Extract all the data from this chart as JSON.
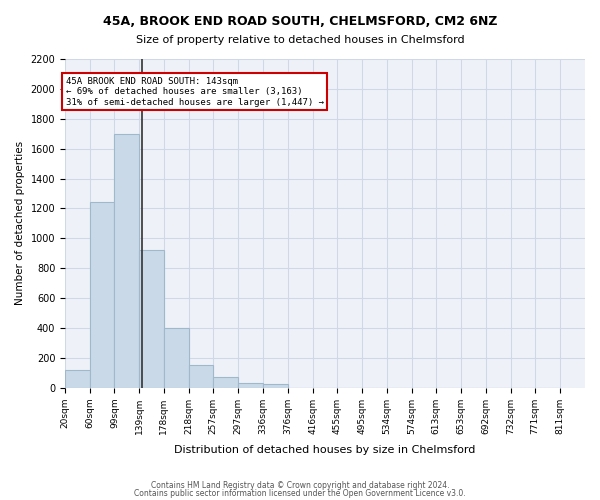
{
  "title1": "45A, BROOK END ROAD SOUTH, CHELMSFORD, CM2 6NZ",
  "title2": "Size of property relative to detached houses in Chelmsford",
  "xlabel": "Distribution of detached houses by size in Chelmsford",
  "ylabel": "Number of detached properties",
  "bin_labels": [
    "20sqm",
    "60sqm",
    "99sqm",
    "139sqm",
    "178sqm",
    "218sqm",
    "257sqm",
    "297sqm",
    "336sqm",
    "376sqm",
    "416sqm",
    "455sqm",
    "495sqm",
    "534sqm",
    "574sqm",
    "613sqm",
    "653sqm",
    "692sqm",
    "732sqm",
    "771sqm",
    "811sqm"
  ],
  "bin_edges": [
    20,
    60,
    99,
    139,
    178,
    218,
    257,
    297,
    336,
    376,
    416,
    455,
    495,
    534,
    574,
    613,
    653,
    692,
    732,
    771,
    811
  ],
  "bar_values": [
    120,
    1240,
    1700,
    920,
    400,
    155,
    70,
    35,
    25,
    0,
    0,
    0,
    0,
    0,
    0,
    0,
    0,
    0,
    0,
    0
  ],
  "bar_color": "#c9d9e8",
  "bar_edge_color": "#a0b8cc",
  "property_line_x": 143,
  "property_bin_index": 3,
  "annotation_text_line1": "45A BROOK END ROAD SOUTH: 143sqm",
  "annotation_text_line2": "← 69% of detached houses are smaller (3,163)",
  "annotation_text_line3": "31% of semi-detached houses are larger (1,447) →",
  "annotation_box_color": "#ffffff",
  "annotation_border_color": "#cc0000",
  "grid_color": "#d0d8e8",
  "bg_color": "#eef2f8",
  "ylim": [
    0,
    2200
  ],
  "yticks": [
    0,
    200,
    400,
    600,
    800,
    1000,
    1200,
    1400,
    1600,
    1800,
    2000,
    2200
  ],
  "footer1": "Contains HM Land Registry data © Crown copyright and database right 2024.",
  "footer2": "Contains public sector information licensed under the Open Government Licence v3.0."
}
